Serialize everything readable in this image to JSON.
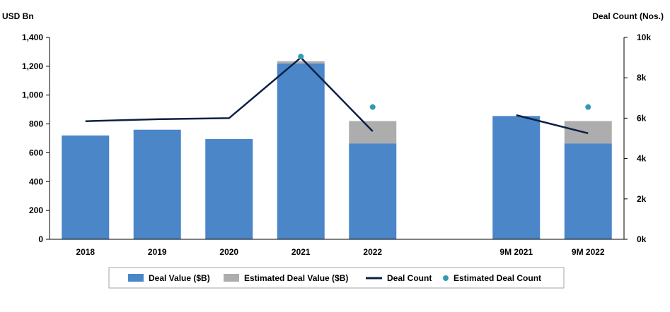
{
  "chart_data": {
    "type": "bar",
    "categories": [
      "2018",
      "2019",
      "2020",
      "2021",
      "2022",
      "",
      "9M 2021",
      "9M 2022"
    ],
    "y_left_label": "USD Bn",
    "y_right_label": "Deal Count (Nos.)",
    "y_left_range": [
      0,
      1400
    ],
    "y_left_ticks": [
      "0",
      "200",
      "400",
      "600",
      "800",
      "1,000",
      "1,200",
      "1,400"
    ],
    "y_right_range": [
      0,
      10000
    ],
    "y_right_ticks": [
      "0k",
      "2k",
      "4k",
      "6k",
      "8k",
      "10k"
    ],
    "series": [
      {
        "name": "Deal Value ($B)",
        "type": "bar",
        "axis": "left",
        "values": [
          720,
          760,
          695,
          1220,
          665,
          null,
          855,
          665
        ]
      },
      {
        "name": "Estimated Deal Value ($B)",
        "type": "bar-stacked",
        "axis": "left",
        "values": [
          0,
          0,
          0,
          15,
          155,
          null,
          0,
          155
        ]
      },
      {
        "name": "Deal Count",
        "type": "line",
        "axis": "right",
        "values": [
          5850,
          5950,
          6000,
          9000,
          5350,
          null,
          6150,
          5250
        ]
      },
      {
        "name": "Estimated Deal Count",
        "type": "scatter",
        "axis": "right",
        "values": [
          null,
          null,
          null,
          9050,
          6550,
          null,
          null,
          6550
        ]
      }
    ],
    "legend_position": "bottom",
    "grid": false,
    "colors": {
      "deal_value": "#4a86c8",
      "estimated_value": "#adadad",
      "deal_count": "#0c2045",
      "estimated_count": "#2e9bb0"
    }
  }
}
